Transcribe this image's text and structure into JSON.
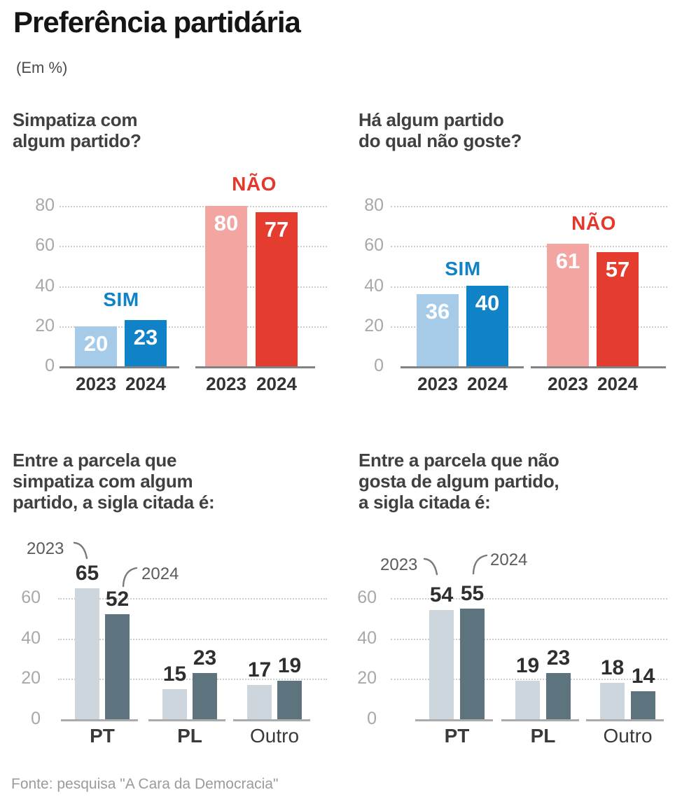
{
  "page": {
    "title": "Preferência partidária",
    "subtitle": "(Em %)",
    "source": "Fonte: pesquisa \"A Cara da Democracia\""
  },
  "colors": {
    "light_blue": "#a6cbe9",
    "dark_blue": "#0f82c8",
    "light_red": "#f3a6a1",
    "red": "#e53c30",
    "light_gray_bar": "#ccd6dc",
    "dark_slate_bar": "#5d747f",
    "grid": "#cccccc",
    "axis_top": "#828282",
    "axis_bottom": "#ababab"
  },
  "chart_data": [
    {
      "type": "bar",
      "title": "Simpatiza com algum partido?",
      "title_lines": [
        "Simpatiza com",
        "algum partido?"
      ],
      "unit": "%",
      "ylim": [
        0,
        80
      ],
      "yticks": [
        80,
        60,
        40,
        20,
        0
      ],
      "grid": "dotted",
      "legend_position": "above-groups",
      "groups": [
        {
          "label": "SIM",
          "label_color": "#0f82c8",
          "bars": [
            {
              "year": "2023",
              "value": 20,
              "color": "#a6cbe9"
            },
            {
              "year": "2024",
              "value": 23,
              "color": "#0f82c8"
            }
          ]
        },
        {
          "label": "NÃO",
          "label_color": "#e5372b",
          "bars": [
            {
              "year": "2023",
              "value": 80,
              "color": "#f3a6a1"
            },
            {
              "year": "2024",
              "value": 77,
              "color": "#e53c30"
            }
          ]
        }
      ]
    },
    {
      "type": "bar",
      "title": "Há algum partido do qual não goste?",
      "title_lines": [
        "Há algum partido",
        "do qual não goste?"
      ],
      "unit": "%",
      "ylim": [
        0,
        80
      ],
      "yticks": [
        80,
        60,
        40,
        20,
        0
      ],
      "grid": "dotted",
      "legend_position": "above-groups",
      "groups": [
        {
          "label": "SIM",
          "label_color": "#0f82c8",
          "bars": [
            {
              "year": "2023",
              "value": 36,
              "color": "#a6cbe9"
            },
            {
              "year": "2024",
              "value": 40,
              "color": "#0f82c8"
            }
          ]
        },
        {
          "label": "NÃO",
          "label_color": "#e5372b",
          "bars": [
            {
              "year": "2023",
              "value": 61,
              "color": "#f3a6a1"
            },
            {
              "year": "2024",
              "value": 57,
              "color": "#e53c30"
            }
          ]
        }
      ]
    },
    {
      "type": "grouped-bar",
      "title": "Entre a parcela que simpatiza com algum partido, a sigla citada é:",
      "title_lines": [
        "Entre a parcela que",
        "simpatiza com algum",
        "partido, a sigla citada é:"
      ],
      "unit": "%",
      "ylim": [
        0,
        60
      ],
      "yticks": [
        60,
        40,
        20,
        0
      ],
      "grid": "dotted",
      "legend": [
        "2023",
        "2024"
      ],
      "categories": [
        {
          "label": "PT",
          "bold": true
        },
        {
          "label": "PL",
          "bold": true
        },
        {
          "label": "Outro",
          "bold": false
        }
      ],
      "series": [
        {
          "name": "2023",
          "color": "#ccd6dc",
          "values": [
            65,
            15,
            17
          ]
        },
        {
          "name": "2024",
          "color": "#5d747f",
          "values": [
            52,
            23,
            19
          ]
        }
      ]
    },
    {
      "type": "grouped-bar",
      "title": "Entre a parcela que não gosta de algum partido, a sigla citada é:",
      "title_lines": [
        "Entre a parcela que não",
        "gosta de algum partido,",
        "a sigla citada é:"
      ],
      "unit": "%",
      "ylim": [
        0,
        60
      ],
      "yticks": [
        60,
        40,
        20,
        0
      ],
      "grid": "dotted",
      "legend": [
        "2023",
        "2024"
      ],
      "categories": [
        {
          "label": "PT",
          "bold": true
        },
        {
          "label": "PL",
          "bold": true
        },
        {
          "label": "Outro",
          "bold": false
        }
      ],
      "series": [
        {
          "name": "2023",
          "color": "#ccd6dc",
          "values": [
            54,
            19,
            18
          ]
        },
        {
          "name": "2024",
          "color": "#5d747f",
          "values": [
            55,
            23,
            14
          ]
        }
      ]
    }
  ]
}
